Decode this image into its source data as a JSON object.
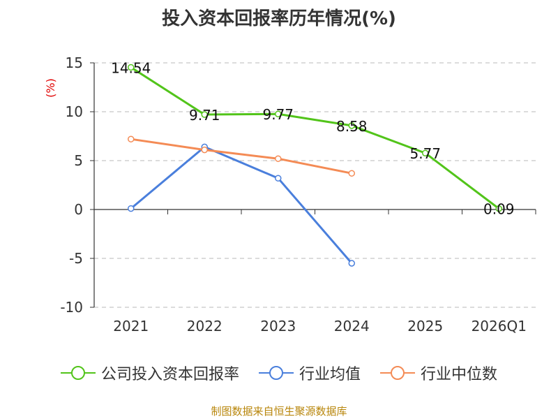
{
  "title": "投入资本回报率历年情况(%)",
  "source": "制图数据来自恒生聚源数据库",
  "chart_data": {
    "type": "line",
    "title": "投入资本回报率历年情况(%)",
    "ylabel": "(%)",
    "categories": [
      "2021",
      "2022",
      "2023",
      "2024",
      "2025",
      "2026Q1"
    ],
    "ylim": [
      -10,
      15
    ],
    "yticks": [
      15,
      10,
      5,
      0,
      -5,
      -10
    ],
    "grid": true,
    "legend_position": "bottom",
    "series": [
      {
        "name": "公司投入资本回报率",
        "color": "#52c41a",
        "values": [
          14.54,
          9.71,
          9.77,
          8.58,
          5.77,
          0.09
        ],
        "labels": [
          "14.54",
          "9.71",
          "9.77",
          "8.58",
          "5.77",
          "0.09"
        ]
      },
      {
        "name": "行业均值",
        "color": "#4a7fdc",
        "values": [
          0.1,
          6.4,
          3.2,
          -5.5,
          null,
          null
        ]
      },
      {
        "name": "行业中位数",
        "color": "#f48b55",
        "values": [
          7.2,
          6.1,
          5.2,
          3.7,
          null,
          null
        ]
      }
    ]
  }
}
